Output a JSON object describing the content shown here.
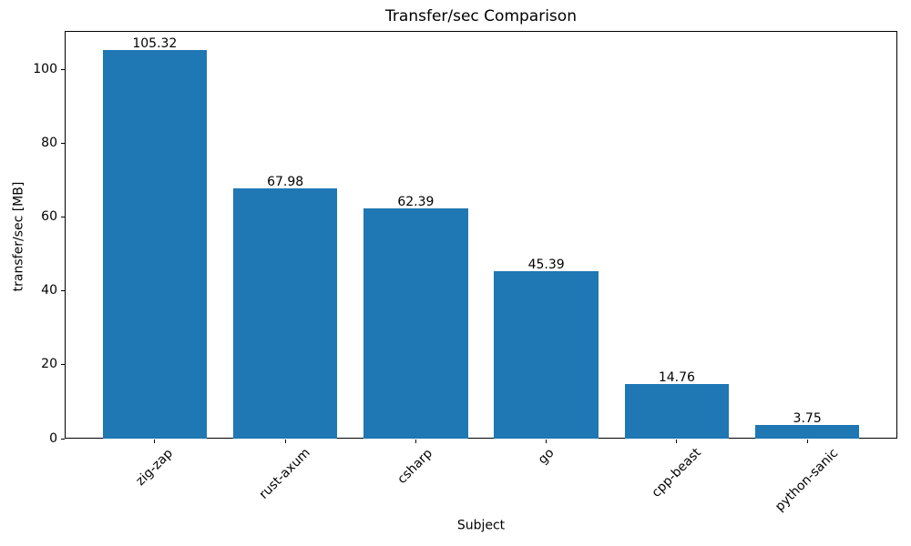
{
  "chart_data": {
    "type": "bar",
    "title": "Transfer/sec Comparison",
    "xlabel": "Subject",
    "ylabel": "transfer/sec [MB]",
    "categories": [
      "zig-zap",
      "rust-axum",
      "csharp",
      "go",
      "cpp-beast",
      "python-sanic"
    ],
    "values": [
      105.32,
      67.98,
      62.39,
      45.39,
      14.76,
      3.75
    ],
    "value_labels": [
      "105.32",
      "67.98",
      "62.39",
      "45.39",
      "14.76",
      "3.75"
    ],
    "yticks": [
      0,
      20,
      40,
      60,
      80,
      100
    ],
    "ylim": [
      0,
      110.59
    ],
    "bar_color": "#1f77b4",
    "background_color": "#ffffff",
    "text_color": "#000000",
    "grid": false,
    "legend": null,
    "x_tick_rotation_deg": 45
  }
}
